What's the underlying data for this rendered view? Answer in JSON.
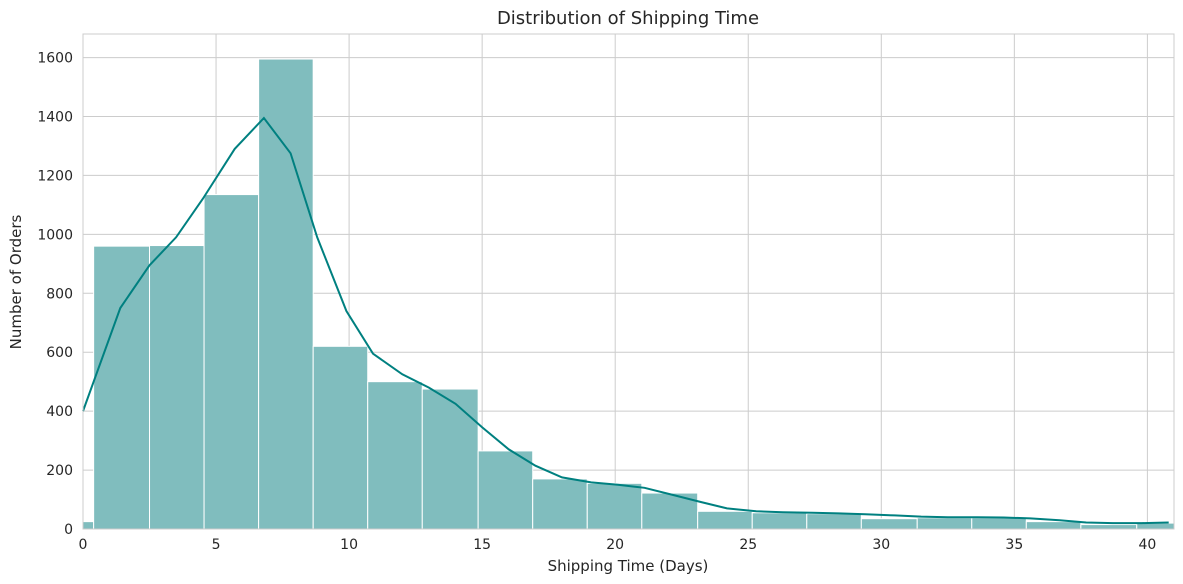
{
  "chart_data": {
    "type": "bar",
    "title": "Distribution of Shipping Time",
    "xlabel": "Shipping Time (Days)",
    "ylabel": "Number of Orders",
    "xlim": [
      0,
      41
    ],
    "ylim": [
      0,
      1680
    ],
    "x_ticks": [
      0,
      5,
      10,
      15,
      20,
      25,
      30,
      35,
      40
    ],
    "y_ticks": [
      0,
      200,
      400,
      600,
      800,
      1000,
      1200,
      1400,
      1600
    ],
    "grid": true,
    "legend": "none",
    "colors": {
      "bar_fill": "#80bdbe",
      "bar_edge": "#ffffff",
      "kde_line": "#008080",
      "grid": "#cccccc",
      "background": "#ffffff"
    },
    "bins": [
      {
        "x0": 0.0,
        "x1": 0.4,
        "count": 25
      },
      {
        "x0": 0.4,
        "x1": 2.5,
        "count": 960
      },
      {
        "x0": 2.5,
        "x1": 4.55,
        "count": 962
      },
      {
        "x0": 4.55,
        "x1": 6.6,
        "count": 1135
      },
      {
        "x0": 6.6,
        "x1": 8.65,
        "count": 1595
      },
      {
        "x0": 8.65,
        "x1": 10.7,
        "count": 620
      },
      {
        "x0": 10.7,
        "x1": 12.75,
        "count": 500
      },
      {
        "x0": 12.75,
        "x1": 14.85,
        "count": 475
      },
      {
        "x0": 14.85,
        "x1": 16.9,
        "count": 265
      },
      {
        "x0": 16.9,
        "x1": 18.95,
        "count": 170
      },
      {
        "x0": 18.95,
        "x1": 21.0,
        "count": 155
      },
      {
        "x0": 21.0,
        "x1": 23.1,
        "count": 122
      },
      {
        "x0": 23.1,
        "x1": 25.15,
        "count": 60
      },
      {
        "x0": 25.15,
        "x1": 27.2,
        "count": 55
      },
      {
        "x0": 27.2,
        "x1": 29.25,
        "count": 52
      },
      {
        "x0": 29.25,
        "x1": 31.35,
        "count": 35
      },
      {
        "x0": 31.35,
        "x1": 33.4,
        "count": 38
      },
      {
        "x0": 33.4,
        "x1": 35.45,
        "count": 38
      },
      {
        "x0": 35.45,
        "x1": 37.5,
        "count": 25
      },
      {
        "x0": 37.5,
        "x1": 39.6,
        "count": 15
      },
      {
        "x0": 39.6,
        "x1": 41.0,
        "count": 20
      }
    ],
    "kde": {
      "x": [
        0.0,
        1.4,
        2.5,
        3.5,
        4.5,
        5.7,
        6.8,
        7.8,
        8.8,
        9.9,
        10.9,
        12.0,
        13.0,
        14.0,
        15.0,
        16.0,
        17.0,
        18.0,
        19.1,
        20.1,
        21.1,
        22.2,
        23.2,
        24.2,
        25.3,
        26.3,
        27.4,
        28.4,
        29.4,
        30.5,
        31.5,
        32.5,
        33.6,
        34.6,
        35.6,
        36.7,
        37.7,
        38.7,
        39.8,
        40.8
      ],
      "y": [
        400,
        750,
        895,
        990,
        1120,
        1290,
        1395,
        1275,
        990,
        740,
        595,
        525,
        480,
        425,
        345,
        270,
        215,
        175,
        158,
        150,
        140,
        115,
        92,
        70,
        60,
        57,
        55,
        53,
        50,
        46,
        42,
        40,
        40,
        39,
        36,
        30,
        22,
        20,
        20,
        22
      ]
    }
  }
}
